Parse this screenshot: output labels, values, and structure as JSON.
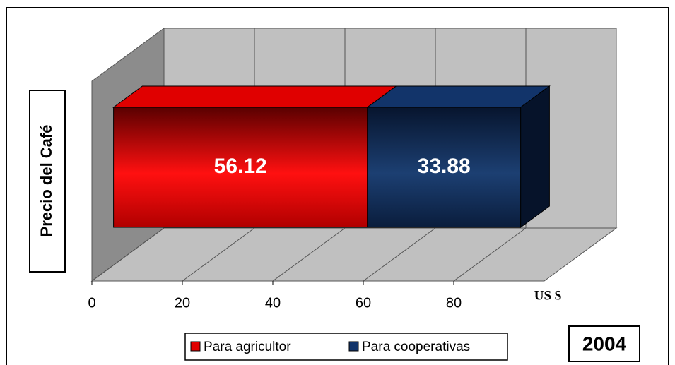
{
  "chart_data": {
    "type": "bar3d_stacked_horizontal",
    "ylabel": "Precio del Café",
    "xlabel": "US $",
    "annotation": "2004",
    "series": [
      {
        "name": "Para agricultor",
        "color": "#e00000",
        "values": [
          56.12
        ]
      },
      {
        "name": "Para cooperativas",
        "color": "#12346a",
        "values": [
          33.88
        ]
      }
    ],
    "xlim": [
      0,
      100
    ],
    "xticks": [
      0,
      20,
      40,
      60,
      80
    ],
    "grid": true
  }
}
